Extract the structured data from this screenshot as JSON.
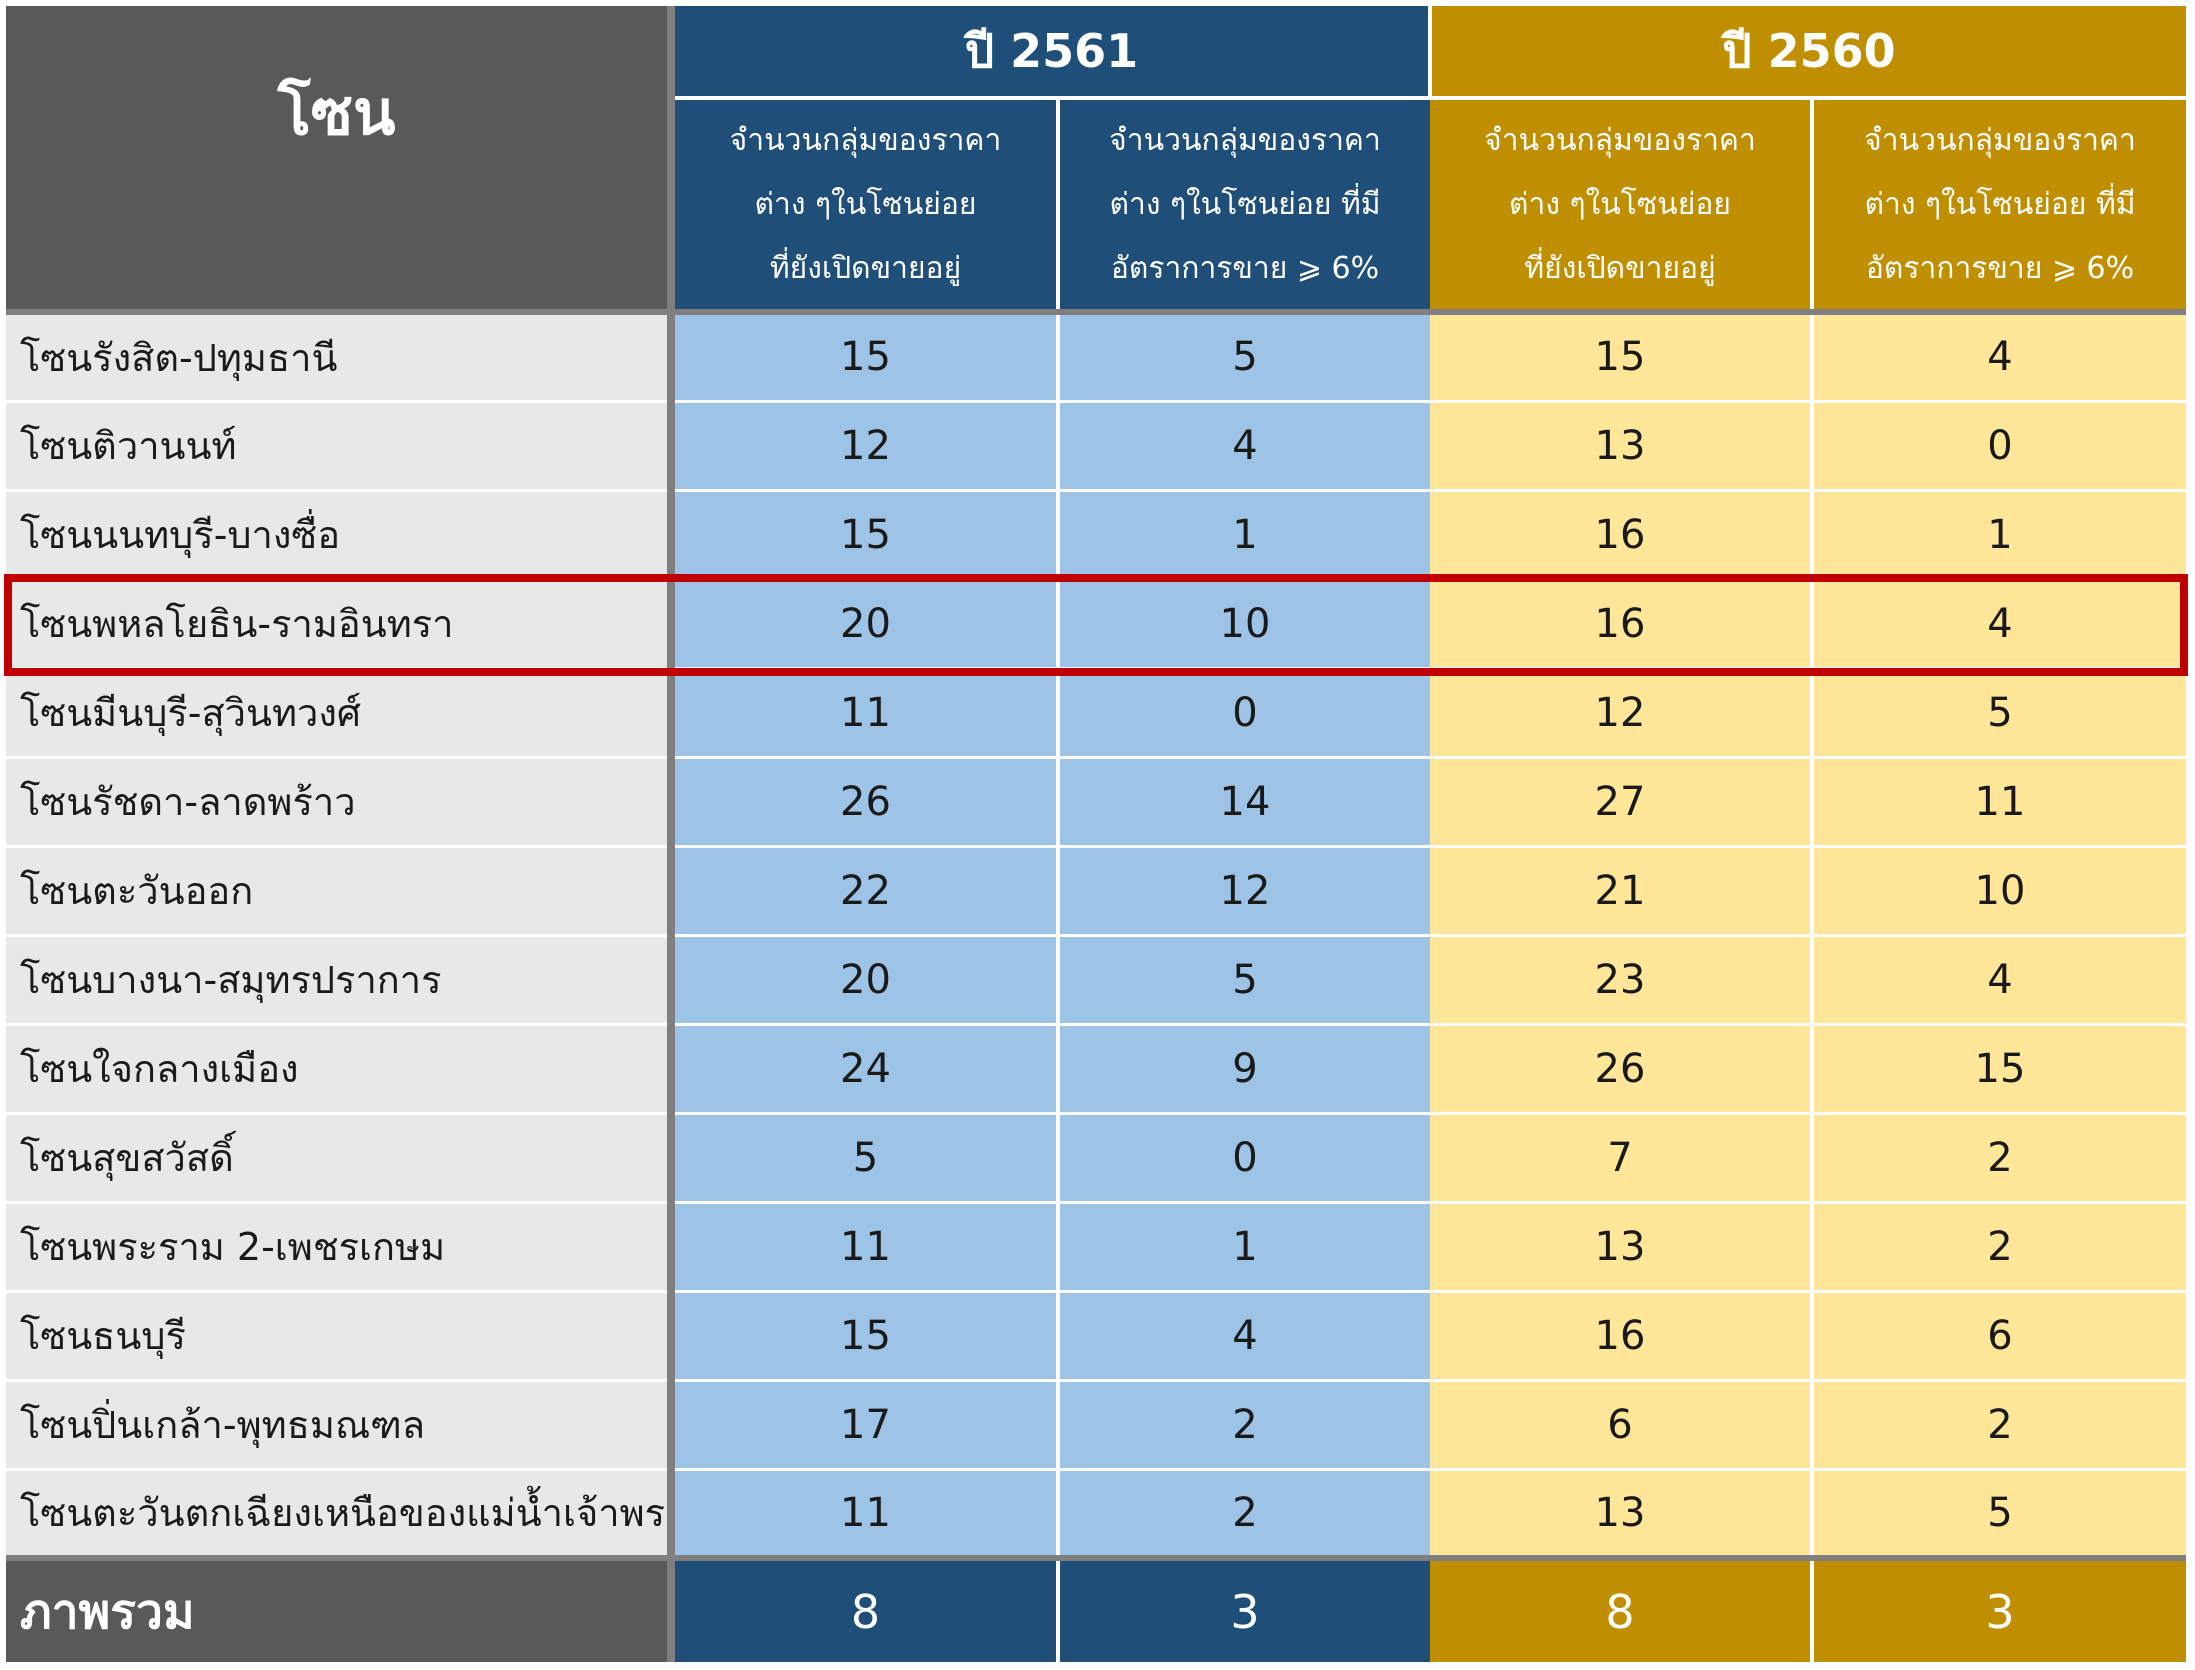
{
  "header": {
    "zone_label": "โซน",
    "years": [
      {
        "label": "ปี 2561",
        "color": "#1f4e79"
      },
      {
        "label": "ปี 2560",
        "color": "#bf8f00"
      }
    ],
    "col_a": [
      "จำนวนกลุ่มของราคา",
      "ต่าง ๆในโซนย่อย",
      "ที่ยังเปิดขายอยู่"
    ],
    "col_b": [
      "จำนวนกลุ่มของราคา",
      "ต่าง ๆในโซนย่อย ที่มี",
      "อัตราการขาย ⩾ 6%"
    ]
  },
  "rows": [
    {
      "zone": "โซนรังสิต-ปทุมธานี",
      "v": [
        "15",
        "5",
        "15",
        "4"
      ]
    },
    {
      "zone": "โซนติวานนท์",
      "v": [
        "12",
        "4",
        "13",
        "0"
      ]
    },
    {
      "zone": "โซนนนทบุรี-บางซื่อ",
      "v": [
        "15",
        "1",
        "16",
        "1"
      ]
    },
    {
      "zone": "โซนพหลโยธิน-รามอินทรา",
      "v": [
        "20",
        "10",
        "16",
        "4"
      ],
      "highlighted": true
    },
    {
      "zone": "โซนมีนบุรี-สุวินทวงศ์",
      "v": [
        "11",
        "0",
        "12",
        "5"
      ]
    },
    {
      "zone": "โซนรัชดา-ลาดพร้าว",
      "v": [
        "26",
        "14",
        "27",
        "11"
      ]
    },
    {
      "zone": "โซนตะวันออก",
      "v": [
        "22",
        "12",
        "21",
        "10"
      ]
    },
    {
      "zone": "โซนบางนา-สมุทรปราการ",
      "v": [
        "20",
        "5",
        "23",
        "4"
      ]
    },
    {
      "zone": "โซนใจกลางเมือง",
      "v": [
        "24",
        "9",
        "26",
        "15"
      ]
    },
    {
      "zone": "โซนสุขสวัสดิ์",
      "v": [
        "5",
        "0",
        "7",
        "2"
      ]
    },
    {
      "zone": "โซนพระราม 2-เพชรเกษม",
      "v": [
        "11",
        "1",
        "13",
        "2"
      ]
    },
    {
      "zone": "โซนธนบุรี",
      "v": [
        "15",
        "4",
        "16",
        "6"
      ]
    },
    {
      "zone": "โซนปิ่นเกล้า-พุทธมณฑล",
      "v": [
        "17",
        "2",
        "6",
        "2"
      ]
    },
    {
      "zone": "โซนตะวันตกเฉียงเหนือของแม่น้ำเจ้าพระยา",
      "v": [
        "11",
        "2",
        "13",
        "5"
      ]
    }
  ],
  "total": {
    "label": "ภาพรวม",
    "v": [
      "8",
      "3",
      "8",
      "3"
    ]
  },
  "colors": {
    "zone_header_bg": "#595959",
    "blue_dark": "#1f4e79",
    "blue_light": "#9dc3e6",
    "gold_dark": "#bf8f00",
    "gold_light": "#ffe699",
    "zone_cell_bg": "#e8e8e8",
    "highlight": "#c00000"
  }
}
